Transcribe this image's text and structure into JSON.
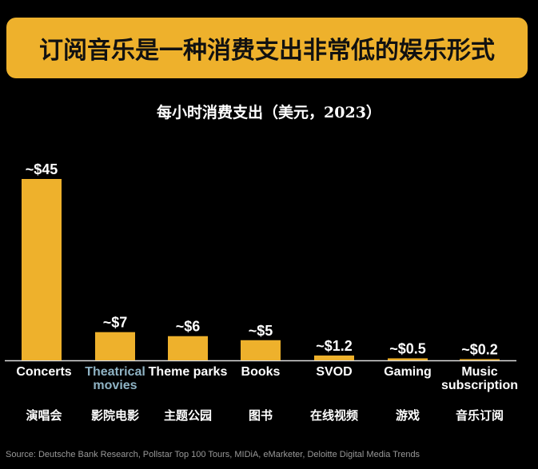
{
  "title": "订阅音乐是一种消费支出非常低的娱乐形式",
  "source": "Source: Deutsche Bank Research, Pollstar Top 100 Tours, MIDiA, eMarketer, Deloitte Digital Media Trends",
  "chart_data": {
    "type": "bar",
    "title": "每小时消费支出（美元，2023）",
    "categories": [
      "Concerts",
      "Theatrical movies",
      "Theme parks",
      "Books",
      "SVOD",
      "Gaming",
      "Music subscription"
    ],
    "categories_cn": [
      "演唱会",
      "影院电影",
      "主题公园",
      "图书",
      "在线视频",
      "游戏",
      "音乐订阅"
    ],
    "values": [
      45,
      7,
      6,
      5,
      1.2,
      0.5,
      0.2
    ],
    "data_labels": [
      "~$45",
      "~$7",
      "~$6",
      "~$5",
      "~$1.2",
      "~$0.5",
      "~$0.2"
    ],
    "highlight_category": "Theatrical movies",
    "colors": {
      "bar": "#eeb12c",
      "highlight_label": "#8fb3c4",
      "banner": "#eeb12c"
    },
    "ylim": [
      0,
      45
    ],
    "grid": false
  }
}
